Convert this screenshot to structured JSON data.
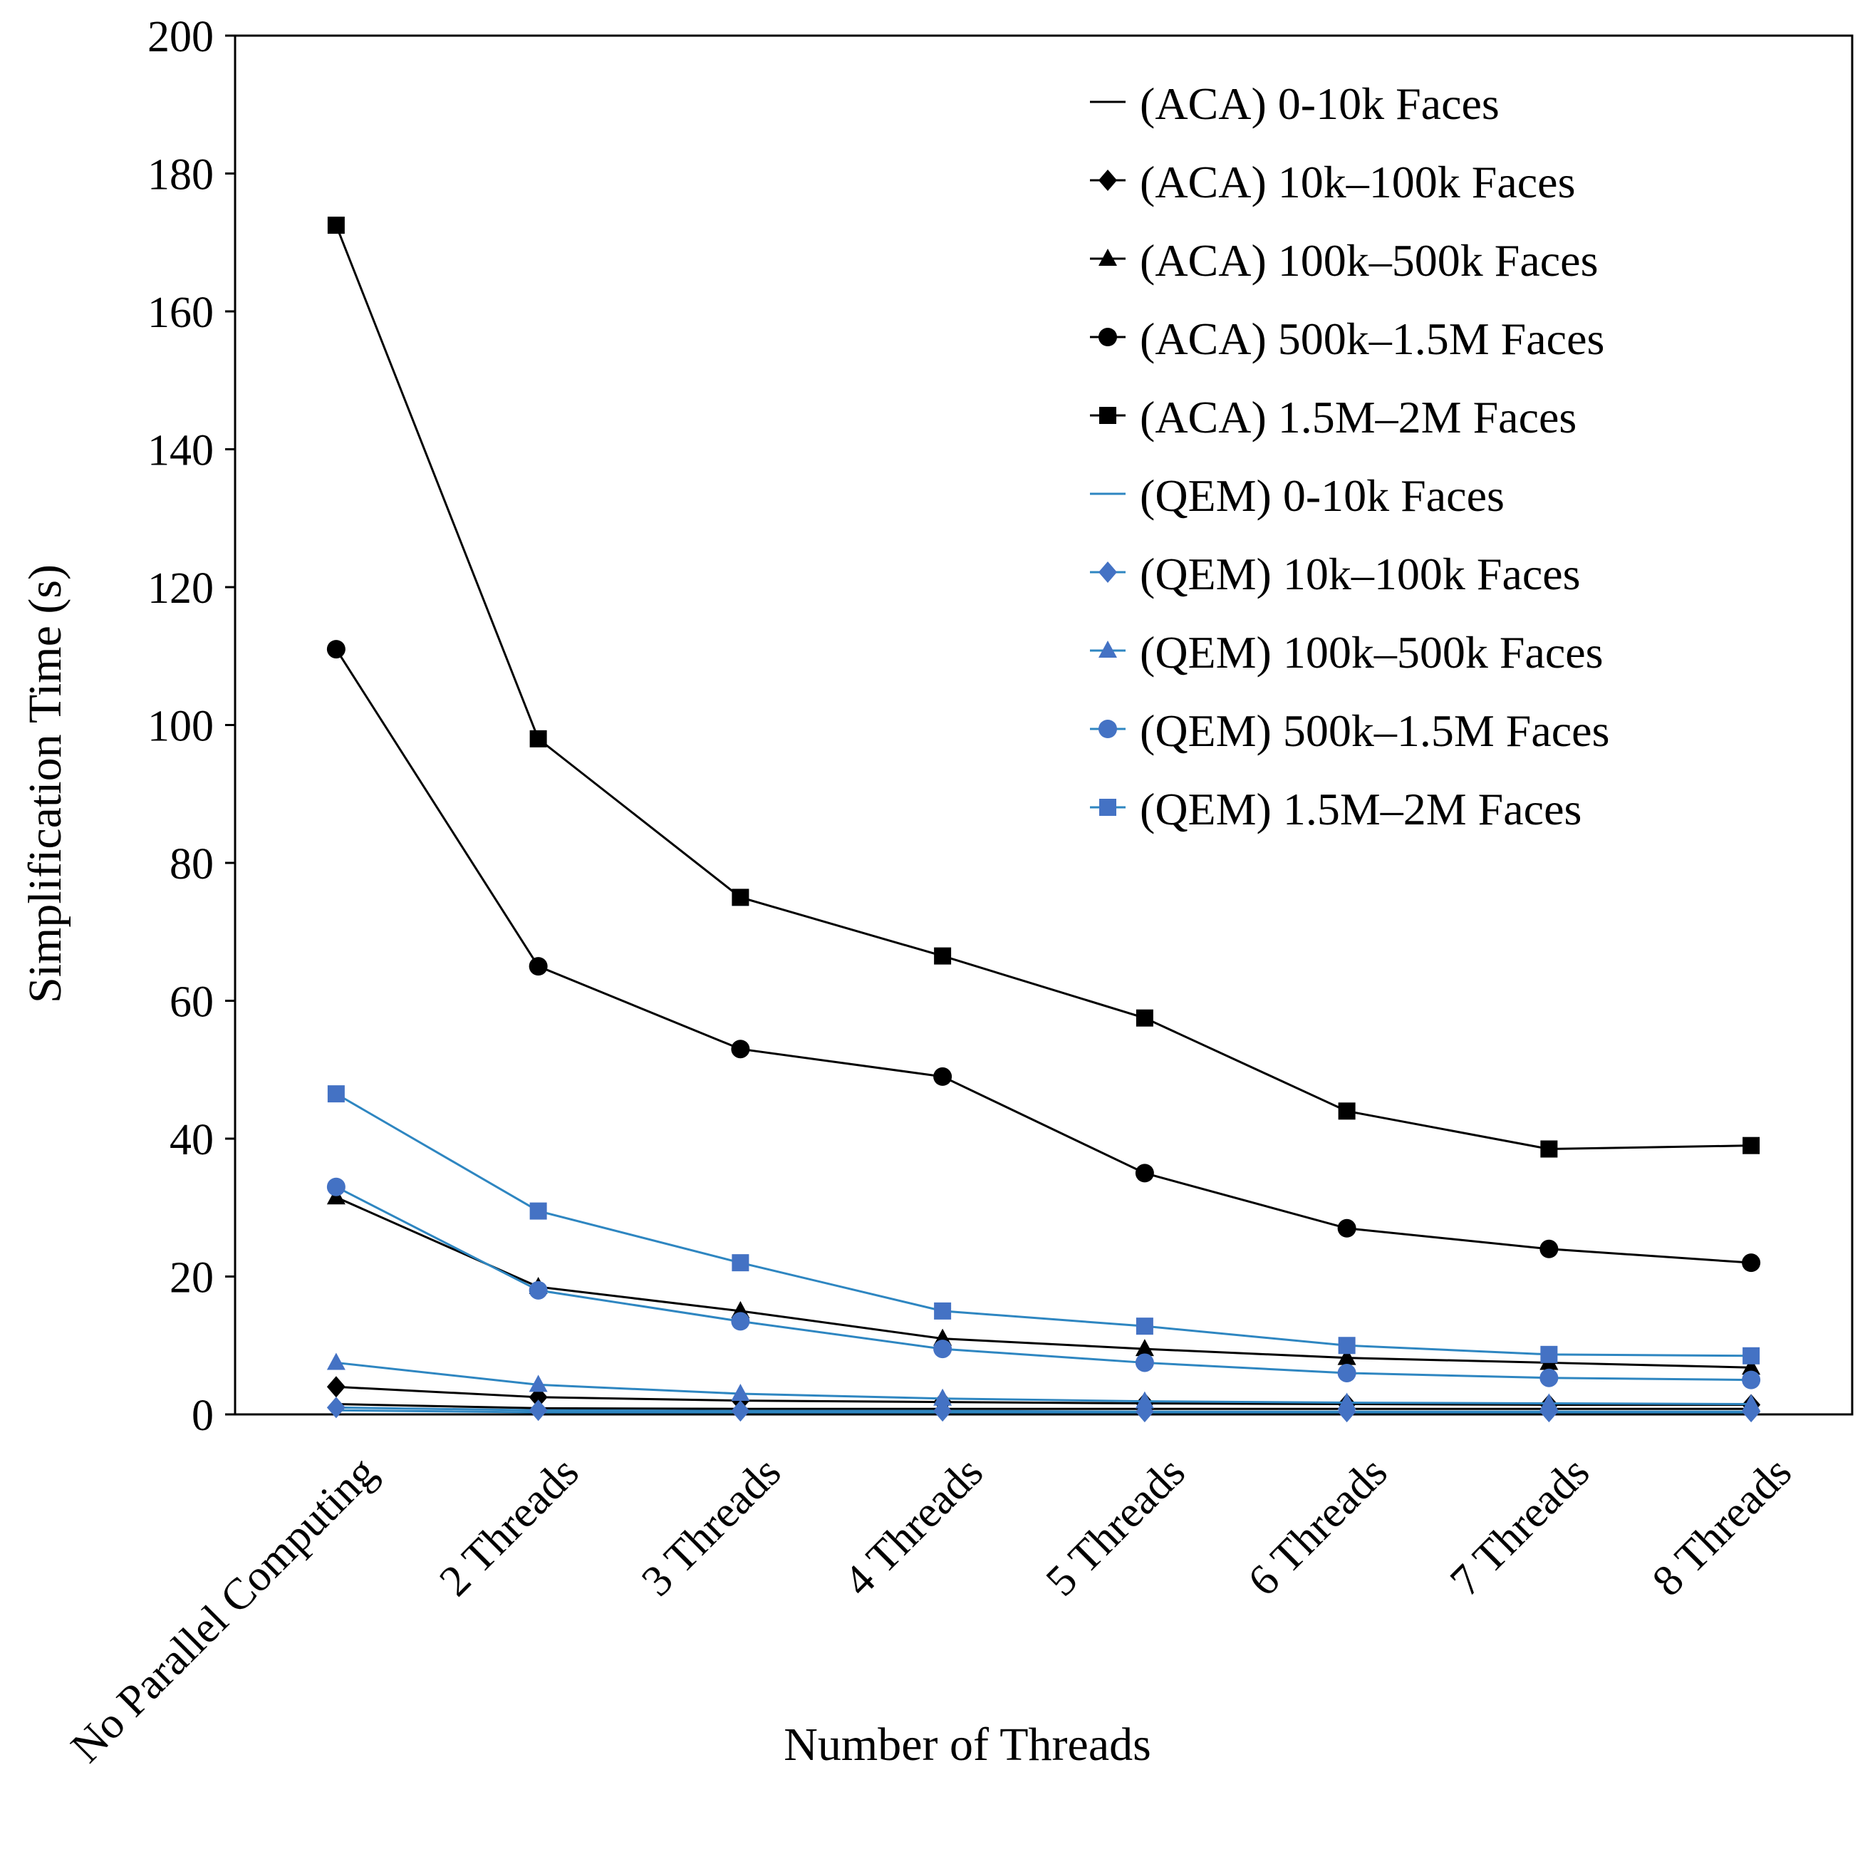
{
  "chart_data": {
    "type": "line",
    "title": "",
    "xlabel": "Number of Threads",
    "ylabel": "Simplification Time (s)",
    "categories": [
      "No Parallel Computing",
      "2 Threads",
      "3 Threads",
      "4 Threads",
      "5 Threads",
      "6 Threads",
      "7 Threads",
      "8 Threads"
    ],
    "ylim": [
      0,
      200
    ],
    "yticks": [
      0,
      20,
      40,
      60,
      80,
      100,
      120,
      140,
      160,
      180,
      200
    ],
    "grid": false,
    "legend_position": "top-right",
    "colors": {
      "aca": "#000000",
      "qem": "#4472c4",
      "qem_line": "#2e86c1"
    },
    "series": [
      {
        "name": "(ACA) 0-10k Faces",
        "group": "aca",
        "marker": "none",
        "values": [
          1.5,
          0.9,
          0.8,
          0.8,
          0.8,
          0.8,
          0.8,
          0.8
        ]
      },
      {
        "name": "(ACA) 10k–100k Faces",
        "group": "aca",
        "marker": "diamond",
        "values": [
          4.0,
          2.5,
          2.0,
          1.8,
          1.6,
          1.5,
          1.4,
          1.4
        ]
      },
      {
        "name": "(ACA) 100k–500k Faces",
        "group": "aca",
        "marker": "triangle",
        "values": [
          31.5,
          18.5,
          15.0,
          11.0,
          9.5,
          8.2,
          7.5,
          6.8
        ]
      },
      {
        "name": "(ACA) 500k–1.5M Faces",
        "group": "aca",
        "marker": "circle",
        "values": [
          111.0,
          65.0,
          53.0,
          49.0,
          35.0,
          27.0,
          24.0,
          22.0
        ]
      },
      {
        "name": "(ACA) 1.5M–2M Faces",
        "group": "aca",
        "marker": "square",
        "values": [
          172.5,
          98.0,
          75.0,
          66.5,
          57.5,
          44.0,
          38.5,
          39.0
        ]
      },
      {
        "name": "(QEM) 0-10k Faces",
        "group": "qem",
        "marker": "none",
        "values": [
          0.6,
          0.3,
          0.3,
          0.3,
          0.3,
          0.3,
          0.3,
          0.3
        ]
      },
      {
        "name": "(QEM) 10k–100k Faces",
        "group": "qem",
        "marker": "diamond",
        "values": [
          1.0,
          0.6,
          0.5,
          0.5,
          0.4,
          0.4,
          0.4,
          0.4
        ]
      },
      {
        "name": "(QEM) 100k–500k Faces",
        "group": "qem",
        "marker": "triangle",
        "values": [
          7.5,
          4.3,
          3.0,
          2.3,
          1.9,
          1.7,
          1.6,
          1.5
        ]
      },
      {
        "name": "(QEM) 500k–1.5M Faces",
        "group": "qem",
        "marker": "circle",
        "values": [
          33.0,
          18.0,
          13.5,
          9.5,
          7.5,
          6.0,
          5.3,
          5.0
        ]
      },
      {
        "name": "(QEM) 1.5M–2M Faces",
        "group": "qem",
        "marker": "square",
        "values": [
          46.5,
          29.5,
          22.0,
          15.0,
          12.8,
          10.0,
          8.7,
          8.5
        ]
      }
    ]
  }
}
